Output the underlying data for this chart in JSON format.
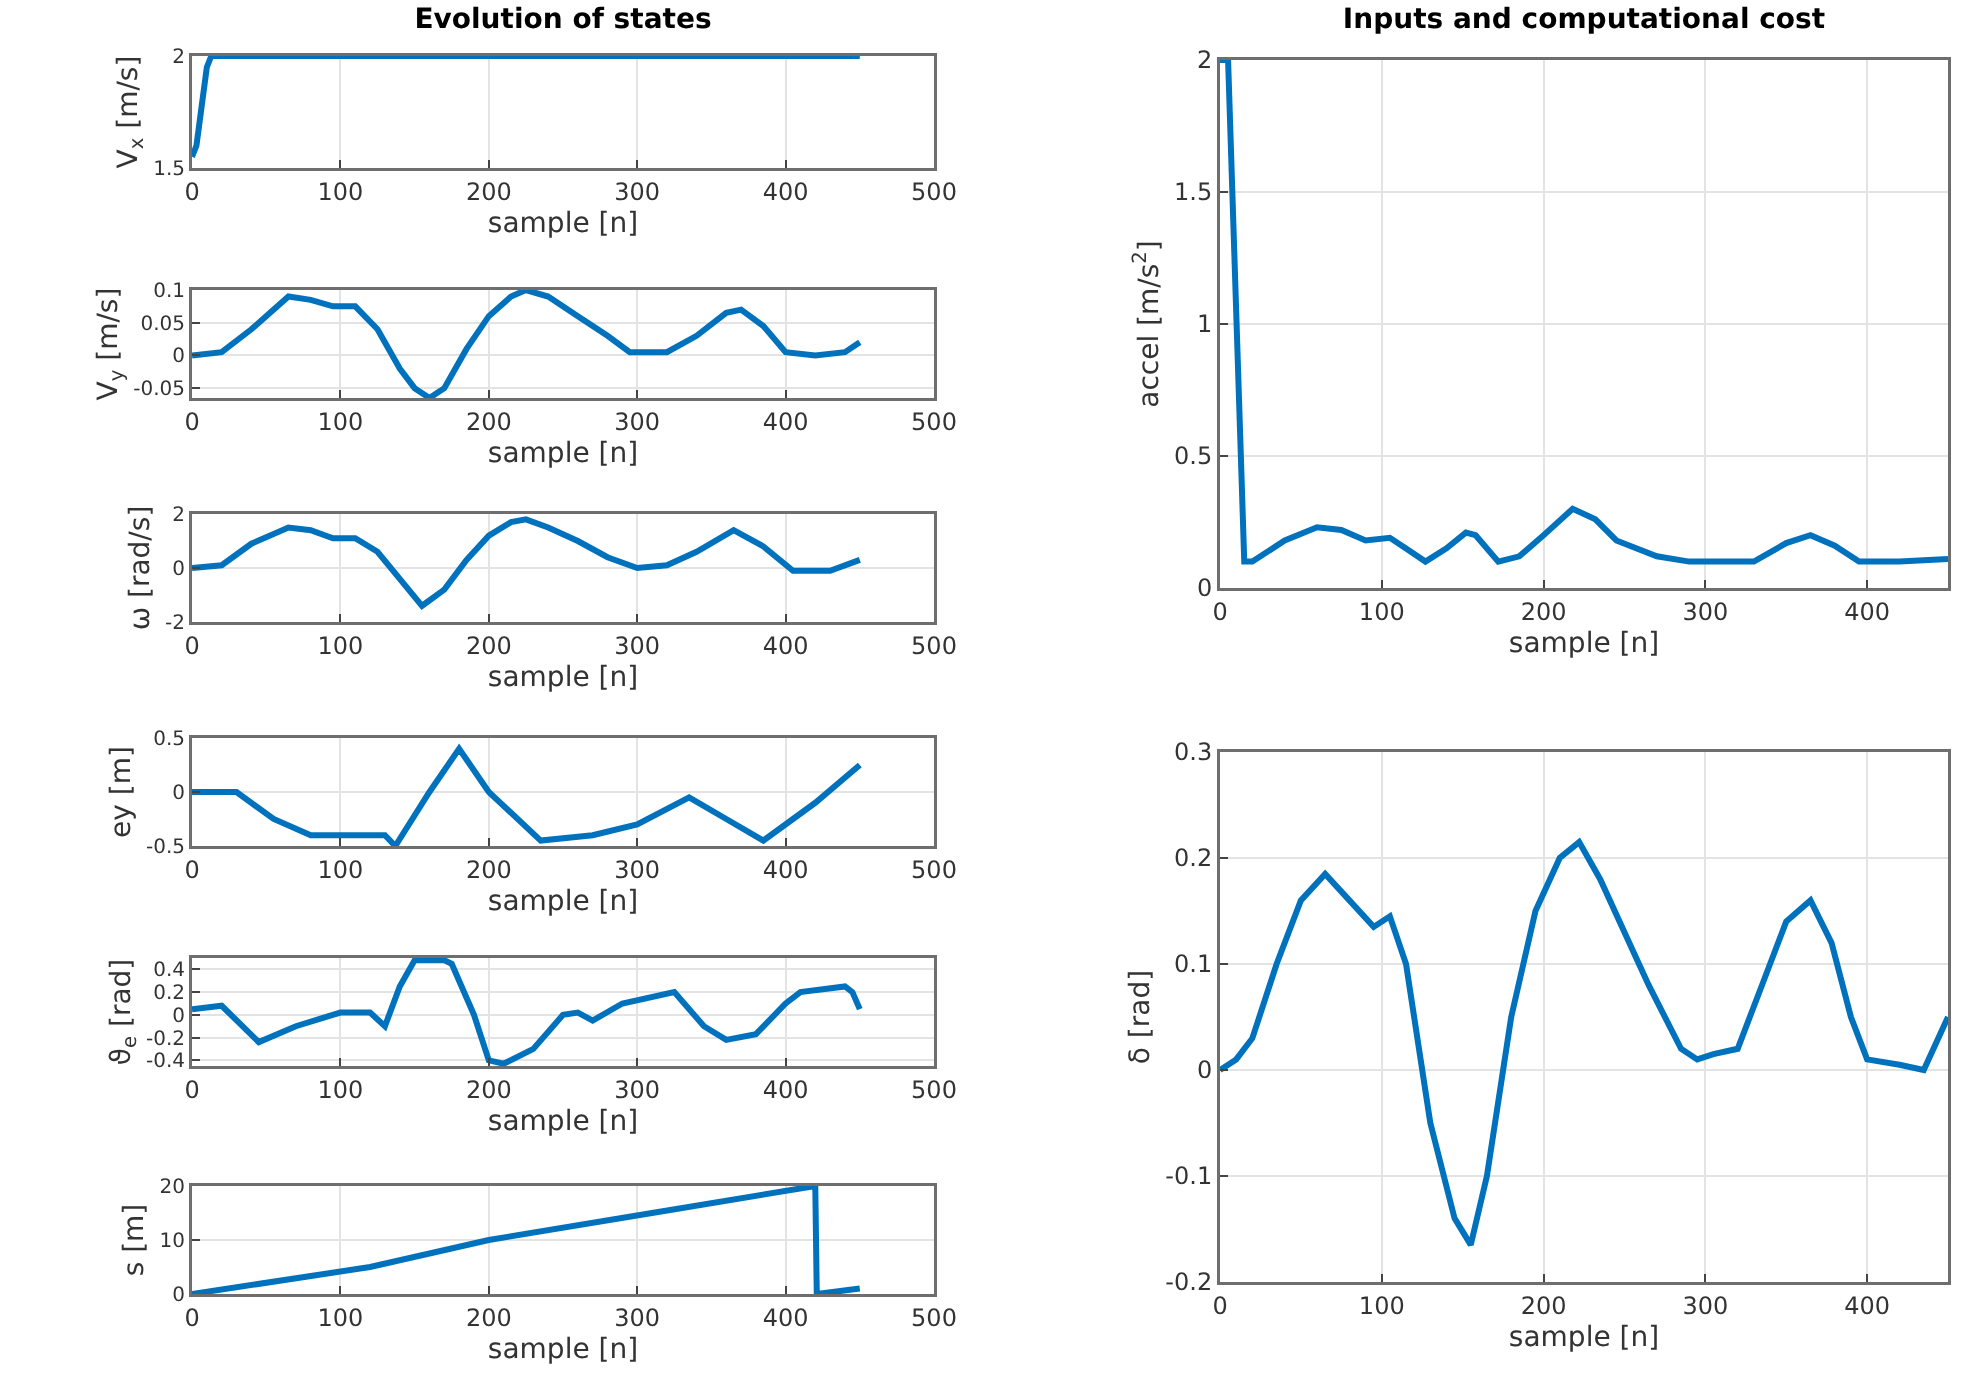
{
  "chart_data": [
    {
      "type": "line",
      "title": "Evolution of states",
      "xlabel": "sample [n]",
      "ylabel": "V$_{x}$ [m/s]",
      "color": "#0072bd",
      "grid": true,
      "xlim": [
        0,
        500
      ],
      "xticks": [
        0,
        100,
        200,
        300,
        400,
        500
      ],
      "ylim": [
        1.5,
        2
      ],
      "yticks": [
        1.5,
        2
      ],
      "x": [
        0,
        3,
        6,
        10,
        13,
        450
      ],
      "values": [
        1.55,
        1.6,
        1.75,
        1.95,
        2,
        2
      ]
    },
    {
      "type": "line",
      "xlabel": "sample [n]",
      "ylabel": "V$_{y}$ [m/s]",
      "color": "#0072bd",
      "grid": true,
      "xlim": [
        0,
        500
      ],
      "xticks": [
        0,
        100,
        200,
        300,
        400,
        500
      ],
      "ylim": [
        -0.065,
        0.1
      ],
      "yticks": [
        -0.05,
        0,
        0.05,
        0.1
      ],
      "x": [
        0,
        20,
        40,
        65,
        80,
        95,
        110,
        125,
        140,
        150,
        160,
        170,
        185,
        200,
        215,
        225,
        240,
        260,
        280,
        295,
        320,
        340,
        360,
        370,
        385,
        400,
        420,
        440,
        450
      ],
      "values": [
        0,
        0.005,
        0.04,
        0.09,
        0.085,
        0.075,
        0.075,
        0.04,
        -0.02,
        -0.05,
        -0.065,
        -0.05,
        0.01,
        0.06,
        0.09,
        0.1,
        0.09,
        0.06,
        0.03,
        0.005,
        0.005,
        0.03,
        0.065,
        0.07,
        0.045,
        0.005,
        0,
        0.005,
        0.02
      ]
    },
    {
      "type": "line",
      "xlabel": "sample [n]",
      "ylabel": "ω [rad/s]",
      "color": "#0072bd",
      "grid": true,
      "xlim": [
        0,
        500
      ],
      "xticks": [
        0,
        100,
        200,
        300,
        400,
        500
      ],
      "ylim": [
        -2,
        2
      ],
      "yticks": [
        -2,
        0,
        2
      ],
      "x": [
        0,
        20,
        40,
        65,
        80,
        95,
        110,
        125,
        140,
        155,
        170,
        185,
        200,
        215,
        225,
        240,
        260,
        280,
        300,
        320,
        340,
        365,
        385,
        405,
        430,
        450
      ],
      "values": [
        0,
        0.1,
        0.9,
        1.5,
        1.4,
        1.1,
        1.1,
        0.6,
        -0.4,
        -1.4,
        -0.8,
        0.3,
        1.2,
        1.7,
        1.8,
        1.5,
        1,
        0.4,
        0,
        0.1,
        0.6,
        1.4,
        0.8,
        -0.1,
        -0.1,
        0.3
      ]
    },
    {
      "type": "line",
      "xlabel": "sample [n]",
      "ylabel": "ey [m]",
      "color": "#0072bd",
      "grid": true,
      "xlim": [
        0,
        500
      ],
      "xticks": [
        0,
        100,
        200,
        300,
        400,
        500
      ],
      "ylim": [
        -0.5,
        0.5
      ],
      "yticks": [
        -0.5,
        0,
        0.5
      ],
      "x": [
        0,
        30,
        55,
        80,
        120,
        130,
        137,
        160,
        180,
        200,
        235,
        270,
        300,
        335,
        360,
        385,
        420,
        450
      ],
      "values": [
        0,
        0,
        -0.25,
        -0.4,
        -0.4,
        -0.4,
        -0.5,
        0,
        0.4,
        0,
        -0.45,
        -0.4,
        -0.3,
        -0.05,
        -0.25,
        -0.45,
        -0.1,
        0.25
      ]
    },
    {
      "type": "line",
      "xlabel": "sample [n]",
      "ylabel": "ϑ$_{e}$ [rad]",
      "color": "#0072bd",
      "grid": true,
      "xlim": [
        0,
        500
      ],
      "xticks": [
        0,
        100,
        200,
        300,
        400,
        500
      ],
      "ylim": [
        -0.45,
        0.5
      ],
      "yticks": [
        -0.4,
        -0.2,
        0,
        0.2,
        0.4
      ],
      "x": [
        0,
        20,
        45,
        70,
        100,
        120,
        130,
        140,
        150,
        170,
        175,
        190,
        200,
        210,
        230,
        250,
        260,
        270,
        290,
        325,
        345,
        360,
        380,
        400,
        410,
        440,
        445,
        450
      ],
      "values": [
        0.05,
        0.08,
        -0.24,
        -0.1,
        0.02,
        0.02,
        -0.1,
        0.25,
        0.48,
        0.48,
        0.45,
        0,
        -0.4,
        -0.43,
        -0.3,
        0,
        0.02,
        -0.05,
        0.1,
        0.2,
        -0.1,
        -0.22,
        -0.17,
        0.1,
        0.2,
        0.25,
        0.2,
        0.05
      ]
    },
    {
      "type": "line",
      "xlabel": "sample [n]",
      "ylabel": "s [m]",
      "color": "#0072bd",
      "grid": true,
      "xlim": [
        0,
        500
      ],
      "xticks": [
        0,
        100,
        200,
        300,
        400,
        500
      ],
      "ylim": [
        0,
        20
      ],
      "yticks": [
        0,
        10,
        20
      ],
      "x": [
        0,
        120,
        200,
        310,
        420,
        421,
        450
      ],
      "values": [
        0,
        5,
        10,
        15,
        20,
        0,
        1
      ]
    },
    {
      "type": "line",
      "title": "Inputs and computational cost",
      "xlabel": "sample [n]",
      "ylabel": "accel [m/s$^{2}$]",
      "color": "#0072bd",
      "grid": true,
      "xlim": [
        0,
        450
      ],
      "xticks": [
        0,
        100,
        200,
        300,
        400
      ],
      "ylim": [
        0,
        2
      ],
      "yticks": [
        0,
        0.5,
        1,
        1.5,
        2
      ],
      "x": [
        0,
        5,
        15,
        20,
        40,
        60,
        75,
        90,
        105,
        115,
        127,
        140,
        152,
        158,
        172,
        185,
        200,
        218,
        232,
        245,
        270,
        290,
        330,
        350,
        365,
        380,
        395,
        420,
        450
      ],
      "values": [
        2,
        2,
        0.1,
        0.1,
        0.18,
        0.23,
        0.22,
        0.18,
        0.19,
        0.15,
        0.1,
        0.15,
        0.21,
        0.2,
        0.1,
        0.12,
        0.2,
        0.3,
        0.26,
        0.18,
        0.12,
        0.1,
        0.1,
        0.17,
        0.2,
        0.16,
        0.1,
        0.1,
        0.11
      ]
    },
    {
      "type": "line",
      "xlabel": "sample [n]",
      "ylabel": "δ [rad]",
      "color": "#0072bd",
      "grid": true,
      "xlim": [
        0,
        450
      ],
      "xticks": [
        0,
        100,
        200,
        300,
        400
      ],
      "ylim": [
        -0.2,
        0.3
      ],
      "yticks": [
        -0.2,
        -0.1,
        0,
        0.1,
        0.2,
        0.3
      ],
      "x": [
        0,
        10,
        20,
        35,
        50,
        65,
        80,
        95,
        105,
        115,
        130,
        145,
        155,
        165,
        180,
        195,
        210,
        222,
        235,
        250,
        265,
        285,
        295,
        305,
        320,
        335,
        350,
        365,
        378,
        390,
        400,
        420,
        435,
        450
      ],
      "values": [
        0,
        0.01,
        0.03,
        0.1,
        0.16,
        0.185,
        0.16,
        0.135,
        0.145,
        0.1,
        -0.05,
        -0.14,
        -0.165,
        -0.1,
        0.05,
        0.15,
        0.2,
        0.215,
        0.18,
        0.13,
        0.08,
        0.02,
        0.01,
        0.015,
        0.02,
        0.08,
        0.14,
        0.16,
        0.12,
        0.05,
        0.01,
        0.005,
        0,
        0.05
      ]
    }
  ]
}
